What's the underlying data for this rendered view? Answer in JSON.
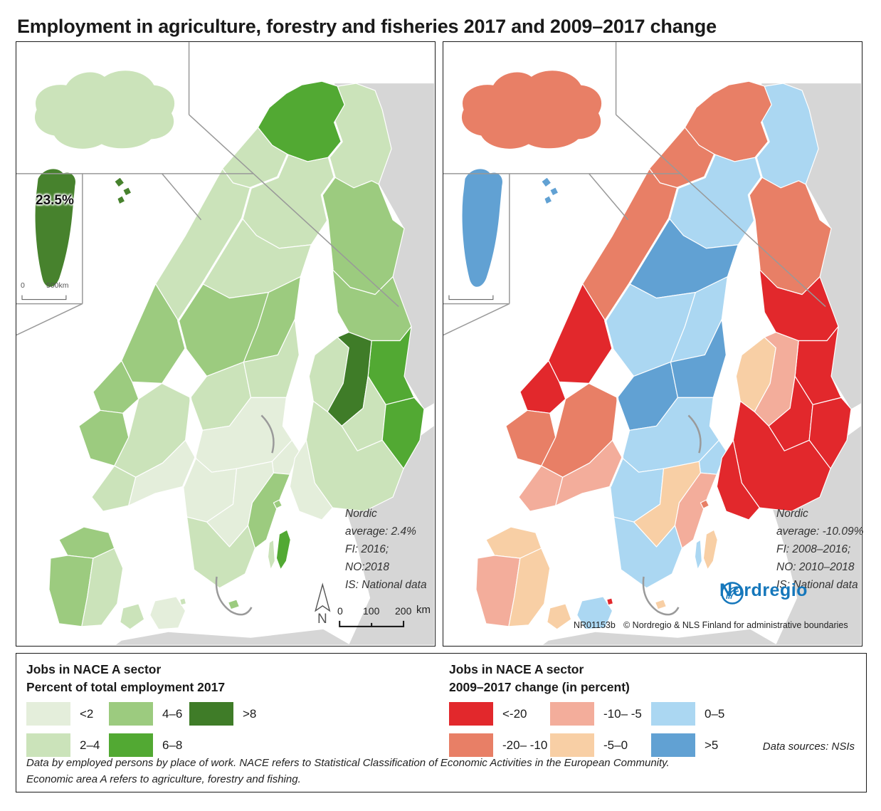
{
  "title": "Employment in agriculture, forestry and fisheries 2017 and 2009–2017 change",
  "maps": {
    "left": {
      "note_lines": [
        "Nordic",
        "average: 2.4%",
        "FI: 2016;",
        "NO:2018",
        "IS: National data"
      ],
      "greenland_label": "23.5%",
      "inset_scale_zero": "0",
      "inset_scale_label": "500km",
      "scalebar_labels": [
        "0",
        "100",
        "200"
      ],
      "scalebar_unit": "km",
      "north_label": "N",
      "fills": {
        "no-finnmark": "#52a933",
        "no-troms": "#cbe3ba",
        "no-nordland": "#cbe3ba",
        "no-trondelag": "#9ccb7f",
        "no-more": "#9ccb7f",
        "no-vestland": "#9ccb7f",
        "no-agder": "#cbe3ba",
        "no-innlandet": "#cbe3ba",
        "no-oslo": "#e4eedb",
        "se-norrbotten": "#cbe3ba",
        "se-vasterbotten": "#cbe3ba",
        "se-jamtland": "#9ccb7f",
        "se-vasternorrland": "#9ccb7f",
        "se-dalarna": "#cbe3ba",
        "se-gavleborg": "#cbe3ba",
        "se-svealand": "#e4eedb",
        "se-stockholm": "#e4eedb",
        "se-gotaland-west": "#e4eedb",
        "se-smaland": "#e4eedb",
        "se-kalmar": "#9ccb7f",
        "se-skane": "#cbe3ba",
        "se-gotland": "#52a933",
        "se-oland": "#cbe3ba",
        "fi-lapland-north": "#cbe3ba",
        "fi-lapland": "#9ccb7f",
        "fi-north-ostrobothnia": "#9ccb7f",
        "fi-kainuu": "#52a933",
        "fi-coast": "#cbe3ba",
        "fi-south-ostrobothnia": "#3f7c28",
        "fi-central": "#cbe3ba",
        "fi-karelia": "#52a933",
        "fi-south": "#cbe3ba",
        "fi-southwest": "#e4eedb",
        "fi-aland": "#9ccb7f",
        "dk-north": "#9ccb7f",
        "dk-west": "#9ccb7f",
        "dk-east": "#cbe3ba",
        "dk-funen": "#cbe3ba",
        "dk-zealand": "#e4eedb",
        "dk-copenhagen": "#cbe3ba",
        "dk-bornholm": "#9ccb7f",
        "is-island": "#cbe3ba",
        "gl-island": "#47822d",
        "fo-islands": "#47822d"
      }
    },
    "right": {
      "note_lines": [
        "Nordic",
        "average: -10.09%",
        "FI: 2008–2016;",
        "NO: 2010–2018",
        "IS: National data"
      ],
      "attribution_id": "NR01153b",
      "attribution": "© Nordregio & NLS Finland for administrative boundaries",
      "logo_text": "Nordregio",
      "fills": {
        "no-finnmark": "#e87f66",
        "no-troms": "#e87f66",
        "no-nordland": "#e87f66",
        "no-trondelag": "#e2282c",
        "no-more": "#e2282c",
        "no-vestland": "#e87f66",
        "no-agder": "#f3ad9b",
        "no-innlandet": "#e87f66",
        "no-oslo": "#f3ad9b",
        "se-norrbotten": "#abd7f2",
        "se-vasterbotten": "#61a1d3",
        "se-jamtland": "#abd7f2",
        "se-vasternorrland": "#abd7f2",
        "se-dalarna": "#61a1d3",
        "se-gavleborg": "#61a1d3",
        "se-svealand": "#abd7f2",
        "se-stockholm": "#abd7f2",
        "se-gotaland-west": "#abd7f2",
        "se-smaland": "#f8cfa5",
        "se-kalmar": "#f3ad9b",
        "se-skane": "#abd7f2",
        "se-gotland": "#f8cfa5",
        "se-oland": "#abd7f2",
        "fi-lapland-north": "#abd7f2",
        "fi-lapland": "#e87f66",
        "fi-north-ostrobothnia": "#e2282c",
        "fi-kainuu": "#e2282c",
        "fi-coast": "#f8cfa5",
        "fi-south-ostrobothnia": "#f3ad9b",
        "fi-central": "#e2282c",
        "fi-karelia": "#e2282c",
        "fi-south": "#e2282c",
        "fi-southwest": "#e2282c",
        "fi-aland": "#e87f66",
        "dk-north": "#f8cfa5",
        "dk-west": "#f3ad9b",
        "dk-east": "#f8cfa5",
        "dk-funen": "#f8cfa5",
        "dk-zealand": "#abd7f2",
        "dk-copenhagen": "#e2282c",
        "dk-bornholm": "#f8cfa5",
        "is-island": "#e87f66",
        "gl-island": "#61a1d3",
        "fo-islands": "#61a1d3"
      }
    }
  },
  "legend_left": {
    "title1": "Jobs in NACE A sector",
    "title2": "Percent of total employment 2017",
    "items": [
      {
        "label": "<2",
        "color": "#e4eedb"
      },
      {
        "label": "2–4",
        "color": "#cbe3ba"
      },
      {
        "label": "4–6",
        "color": "#9ccb7f"
      },
      {
        "label": "6–8",
        "color": "#52a933"
      },
      {
        "label": ">8",
        "color": "#3f7c28"
      }
    ]
  },
  "legend_right": {
    "title1": "Jobs in NACE A sector",
    "title2": "2009–2017 change (in percent)",
    "items": [
      {
        "label": "<-20",
        "color": "#e2282c"
      },
      {
        "label": "-20– -10",
        "color": "#e87f66"
      },
      {
        "label": "-10– -5",
        "color": "#f3ad9b"
      },
      {
        "label": "-5–0",
        "color": "#f8cfa5"
      },
      {
        "label": "0–5",
        "color": "#abd7f2"
      },
      {
        "label": ">5",
        "color": "#61a1d3"
      }
    ],
    "source": "Data sources: NSIs"
  },
  "footnotes": [
    "Data by employed persons by place of work. NACE refers to Statistical Classification of Economic Activities in the European Community.",
    "Economic area A refers to agriculture, forestry and fishing."
  ],
  "colors": {
    "neighbor_land": "#d6d6d6",
    "inset_border": "#999999",
    "logo_blue": "#1577bb",
    "region_border": "#ffffff"
  }
}
